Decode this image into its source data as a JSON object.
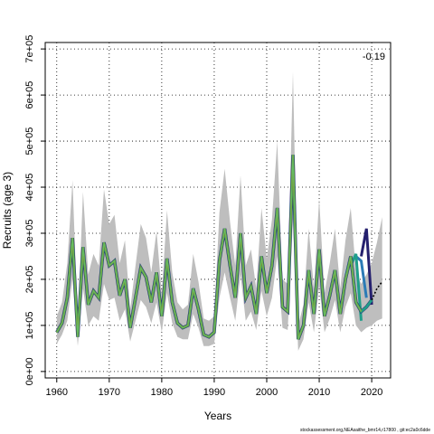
{
  "chart_data": {
    "type": "line",
    "xlabel": "Years",
    "ylabel": "Recruits (age 3)",
    "annotation": "-0.19",
    "footer": "stockassessment.org,NEAsaithe_bmr14,r17800 , git:ec2a0c6dde",
    "xlim": [
      1957.8,
      2023.6
    ],
    "ylim": [
      -14000,
      714000
    ],
    "x_ticks": [
      1960,
      1970,
      1980,
      1990,
      2000,
      2010,
      2020
    ],
    "x_tick_labels": [
      "1960",
      "1970",
      "1980",
      "1990",
      "2000",
      "2010",
      "2020"
    ],
    "y_ticks": [
      0,
      100000,
      200000,
      300000,
      400000,
      500000,
      600000,
      700000
    ],
    "y_tick_labels": [
      "0e+00",
      "1e+05",
      "2e+05",
      "3e+05",
      "4e+05",
      "5e+05",
      "6e+05",
      "7e+05"
    ],
    "grid": true,
    "colors": {
      "band": "#bebebe",
      "main_line": "#000000",
      "green": "#66bd63",
      "retro_dark": "#25206e",
      "retro_mid": "#2c7bb6",
      "retro_teal": "#1f9e89",
      "retro_light": "#9ecae1",
      "olive": "#7a8a2a"
    },
    "x": [
      1960,
      1961,
      1962,
      1963,
      1964,
      1965,
      1966,
      1967,
      1968,
      1969,
      1970,
      1971,
      1972,
      1973,
      1974,
      1975,
      1976,
      1977,
      1978,
      1979,
      1980,
      1981,
      1982,
      1983,
      1984,
      1985,
      1986,
      1987,
      1988,
      1989,
      1990,
      1991,
      1992,
      1993,
      1994,
      1995,
      1996,
      1997,
      1998,
      1999,
      2000,
      2001,
      2002,
      2003,
      2004,
      2005,
      2006,
      2007,
      2008,
      2009,
      2010,
      2011,
      2012,
      2013,
      2014,
      2015,
      2016,
      2017,
      2018,
      2019,
      2020,
      2021,
      2022
    ],
    "series": [
      {
        "values": [
          85000,
          105000,
          160000,
          290000,
          75000,
          270000,
          145000,
          175000,
          160000,
          280000,
          230000,
          240000,
          165000,
          200000,
          95000,
          160000,
          225000,
          205000,
          150000,
          215000,
          120000,
          245000,
          150000,
          105000,
          95000,
          100000,
          180000,
          135000,
          80000,
          75000,
          85000,
          240000,
          310000,
          230000,
          160000,
          300000,
          160000,
          185000,
          125000,
          250000,
          170000,
          230000,
          355000,
          140000,
          130000,
          470000,
          70000,
          100000,
          220000,
          125000,
          265000,
          120000,
          165000,
          220000,
          125000,
          200000,
          250000,
          150000,
          130000,
          140000,
          155000,
          180000,
          195000
        ]
      }
    ],
    "bands": {
      "lower": [
        60000,
        80000,
        110000,
        200000,
        55000,
        180000,
        100000,
        120000,
        110000,
        190000,
        155000,
        160000,
        110000,
        135000,
        65000,
        110000,
        155000,
        140000,
        105000,
        150000,
        85000,
        170000,
        105000,
        75000,
        70000,
        70000,
        125000,
        95000,
        55000,
        55000,
        60000,
        160000,
        215000,
        160000,
        110000,
        210000,
        110000,
        130000,
        90000,
        175000,
        120000,
        160000,
        250000,
        95000,
        90000,
        330000,
        45000,
        70000,
        150000,
        85000,
        185000,
        85000,
        115000,
        155000,
        85000,
        140000,
        170000,
        100000,
        85000,
        95000,
        100000,
        110000,
        115000
      ],
      "upper": [
        120000,
        150000,
        235000,
        415000,
        105000,
        390000,
        210000,
        255000,
        230000,
        395000,
        320000,
        340000,
        235000,
        285000,
        135000,
        230000,
        320000,
        290000,
        215000,
        305000,
        170000,
        350000,
        215000,
        150000,
        135000,
        145000,
        255000,
        195000,
        115000,
        110000,
        120000,
        345000,
        440000,
        325000,
        230000,
        425000,
        230000,
        265000,
        180000,
        355000,
        245000,
        330000,
        500000,
        200000,
        190000,
        650000,
        100000,
        145000,
        310000,
        180000,
        375000,
        170000,
        235000,
        310000,
        180000,
        285000,
        355000,
        215000,
        190000,
        210000,
        235000,
        280000,
        335000
      ]
    },
    "retro_peaks": [
      {
        "name": "",
        "year": 2019,
        "color": "retro_dark",
        "values": [
          250000,
          310000,
          145000
        ]
      },
      {
        "name": "",
        "year": 2018,
        "color": "retro_mid",
        "values": [
          250000,
          240000,
          160000
        ]
      },
      {
        "name": "",
        "year": 2017,
        "color": "retro_teal",
        "values": [
          230000,
          255000,
          110000
        ]
      },
      {
        "name": "",
        "year": 2016,
        "color": "retro_light",
        "values": [
          210000,
          250000,
          170000
        ]
      }
    ]
  }
}
